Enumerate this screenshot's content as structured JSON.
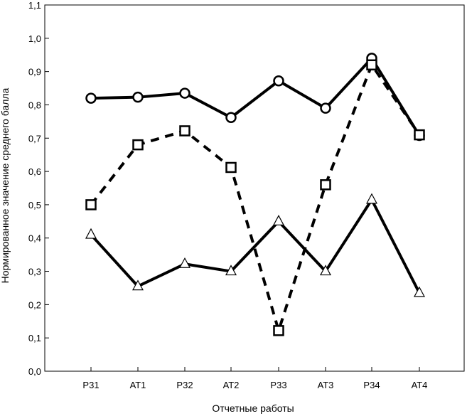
{
  "chart_data": {
    "type": "line",
    "title": "",
    "xlabel": "Отчетные работы",
    "ylabel": "Нормированное значение среднего балла",
    "categories": [
      "Р31",
      "АТ1",
      "Р32",
      "АТ2",
      "Р33",
      "АТ3",
      "Р34",
      "АТ4"
    ],
    "ylim": [
      0.0,
      1.1
    ],
    "yticks": [
      "0,0",
      "0,1",
      "0,2",
      "0,3",
      "0,4",
      "0,5",
      "0,6",
      "0,7",
      "0,8",
      "0,9",
      "1,0",
      "1,1"
    ],
    "grid": false,
    "series": [
      {
        "name": "circles",
        "marker": "circle",
        "line_style": "solid",
        "values": [
          0.82,
          0.823,
          0.835,
          0.762,
          0.872,
          0.79,
          0.94,
          0.708
        ]
      },
      {
        "name": "squares",
        "marker": "square",
        "line_style": "dashed",
        "values": [
          0.5,
          0.68,
          0.722,
          0.612,
          0.122,
          0.56,
          0.92,
          0.71
        ]
      },
      {
        "name": "triangles",
        "marker": "triangle",
        "line_style": "solid",
        "values": [
          0.41,
          0.255,
          0.322,
          0.3,
          0.45,
          0.3,
          0.515,
          0.235
        ]
      }
    ]
  }
}
